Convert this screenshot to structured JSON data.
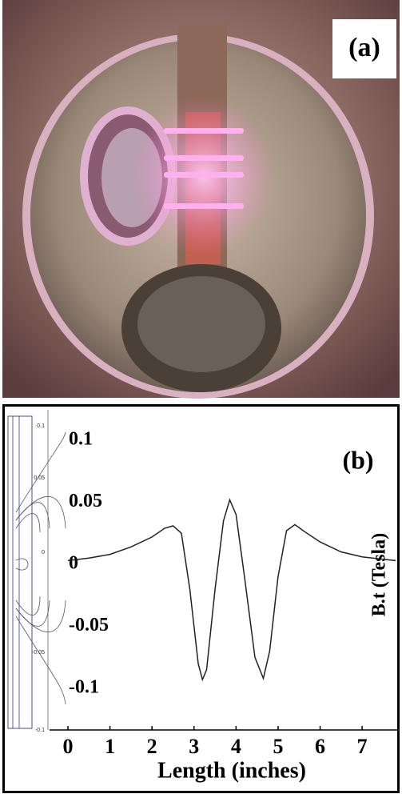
{
  "panel_a": {
    "label": "(a)"
  },
  "chart_data": {
    "type": "line",
    "panel_label": "(b)",
    "x_label": "Length (inches)",
    "y_label": "B.t (Tesla)",
    "inset_ticks": [
      0.1,
      0.05,
      0,
      -0.05,
      -0.1
    ],
    "series": [
      {
        "color": "#222222",
        "x": [
          0,
          0.5,
          1,
          1.5,
          2,
          2.3,
          2.5,
          2.7,
          2.9,
          3.1,
          3.2,
          3.3,
          3.5,
          3.7,
          3.85,
          4.0,
          4.2,
          4.45,
          4.65,
          4.8,
          5.0,
          5.2,
          5.4,
          5.6,
          6,
          6.5,
          7,
          7.5,
          7.8
        ],
        "values": [
          0.003,
          0.005,
          0.008,
          0.014,
          0.022,
          0.029,
          0.031,
          0.025,
          -0.02,
          -0.08,
          -0.093,
          -0.085,
          -0.02,
          0.035,
          0.052,
          0.04,
          -0.01,
          -0.075,
          -0.092,
          -0.07,
          -0.01,
          0.027,
          0.032,
          0.027,
          0.018,
          0.01,
          0.006,
          0.004,
          0.003
        ]
      }
    ],
    "xlim": [
      0,
      7.8
    ],
    "xticks": [
      0,
      1,
      2,
      3,
      4,
      5,
      6,
      7
    ],
    "ylim": [
      -0.1,
      0.1
    ],
    "yticks": [
      0.1,
      0.05,
      0,
      -0.05,
      -0.1
    ]
  }
}
